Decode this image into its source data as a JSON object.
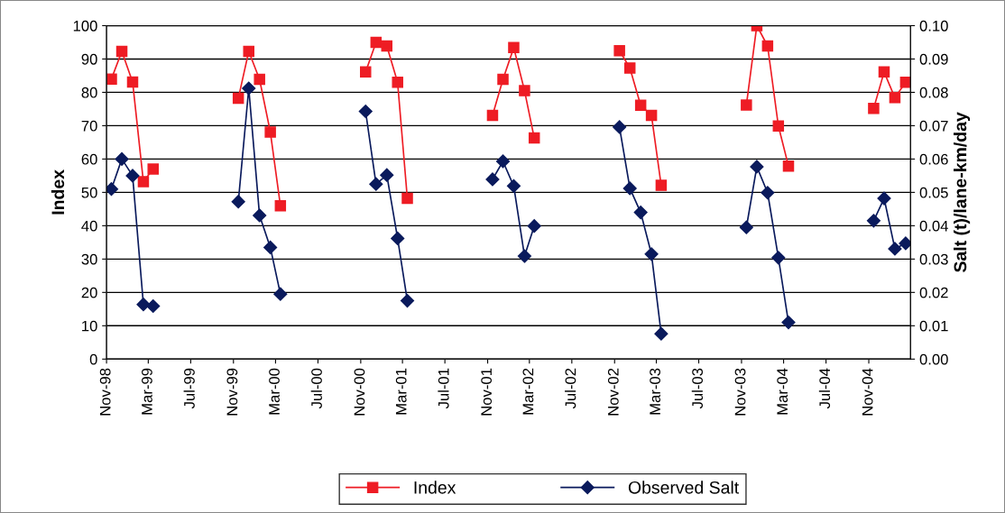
{
  "chart_data": {
    "type": "line",
    "ylabel": "Index",
    "y2label": "Salt (t)/lane-km/day",
    "x": [
      "1998-11-15",
      "1998-12-15",
      "1999-01-15",
      "1999-02-15",
      "1999-03-15",
      "1999-04-15",
      "1999-11-15",
      "1999-12-15",
      "2000-01-15",
      "2000-02-15",
      "2000-03-15",
      "2000-04-15",
      "2000-11-15",
      "2000-12-15",
      "2001-01-15",
      "2001-02-15",
      "2001-03-15",
      "2001-04-15",
      "2001-11-15",
      "2001-12-15",
      "2002-01-15",
      "2002-02-15",
      "2002-03-15",
      "2002-04-15",
      "2002-11-15",
      "2002-12-15",
      "2003-01-15",
      "2003-02-15",
      "2003-03-15",
      "2003-04-15",
      "2003-11-15",
      "2003-12-15",
      "2004-01-15",
      "2004-02-15",
      "2004-03-15",
      "2004-04-15",
      "2004-11-15",
      "2004-12-15",
      "2005-01-15",
      "2005-02-15"
    ],
    "series": [
      {
        "name": "Index",
        "color": "#ee1c24",
        "marker": "square",
        "values": [
          84,
          92.3,
          83.1,
          53.2,
          57,
          null,
          78.2,
          92.3,
          83.9,
          68.1,
          46,
          null,
          86.1,
          95,
          93.9,
          83,
          48.2,
          null,
          73.1,
          83.9,
          93.4,
          80.5,
          66.3,
          null,
          92.5,
          87.3,
          76.1,
          73.1,
          52.1,
          null,
          76.2,
          100,
          93.9,
          69.9,
          57.9,
          null,
          75.2,
          86.1,
          78.4,
          83
        ]
      },
      {
        "name": "Observed Salt",
        "color": "#0a1a5c",
        "marker": "diamond",
        "axis": "y2",
        "values": [
          0.051,
          0.06,
          0.055,
          0.0164,
          0.0159,
          null,
          0.0472,
          0.0812,
          0.0431,
          0.0335,
          0.0195,
          null,
          0.0743,
          0.0525,
          0.0552,
          0.0362,
          0.0175,
          null,
          0.0539,
          0.0593,
          0.0519,
          0.0309,
          0.0399,
          null,
          0.0696,
          0.0512,
          0.044,
          0.0315,
          0.0076,
          null,
          0.0395,
          0.0577,
          0.0499,
          0.0304,
          0.011,
          null,
          0.0415,
          0.0482,
          0.0331,
          0.0347
        ]
      }
    ],
    "xlim": [
      "1998-11-01",
      "2005-03-01"
    ],
    "xticks": [
      {
        "value": "1998-11-01",
        "label": "Nov-98"
      },
      {
        "value": "1999-03-01",
        "label": "Mar-99"
      },
      {
        "value": "1999-07-01",
        "label": "Jul-99"
      },
      {
        "value": "1999-11-01",
        "label": "Nov-99"
      },
      {
        "value": "2000-03-01",
        "label": "Mar-00"
      },
      {
        "value": "2000-07-01",
        "label": "Jul-00"
      },
      {
        "value": "2000-11-01",
        "label": "Nov-00"
      },
      {
        "value": "2001-03-01",
        "label": "Mar-01"
      },
      {
        "value": "2001-07-01",
        "label": "Jul-01"
      },
      {
        "value": "2001-11-01",
        "label": "Nov-01"
      },
      {
        "value": "2002-03-01",
        "label": "Mar-02"
      },
      {
        "value": "2002-07-01",
        "label": "Jul-02"
      },
      {
        "value": "2002-11-01",
        "label": "Nov-02"
      },
      {
        "value": "2003-03-01",
        "label": "Mar-03"
      },
      {
        "value": "2003-07-01",
        "label": "Jul-03"
      },
      {
        "value": "2003-11-01",
        "label": "Nov-03"
      },
      {
        "value": "2004-03-01",
        "label": "Mar-04"
      },
      {
        "value": "2004-07-01",
        "label": "Jul-04"
      },
      {
        "value": "2004-11-01",
        "label": "Nov-04"
      }
    ],
    "ylim": [
      0,
      100
    ],
    "yticks": [
      0,
      10,
      20,
      30,
      40,
      50,
      60,
      70,
      80,
      90,
      100
    ],
    "y2lim": [
      0,
      0.1
    ],
    "y2ticks": [
      {
        "value": 0,
        "label": "0.00"
      },
      {
        "value": 0.01,
        "label": "0.01"
      },
      {
        "value": 0.02,
        "label": "0.02"
      },
      {
        "value": 0.03,
        "label": "0.03"
      },
      {
        "value": 0.04,
        "label": "0.04"
      },
      {
        "value": 0.05,
        "label": "0.05"
      },
      {
        "value": 0.06,
        "label": "0.06"
      },
      {
        "value": 0.07,
        "label": "0.07"
      },
      {
        "value": 0.08,
        "label": "0.08"
      },
      {
        "value": 0.09,
        "label": "0.09"
      },
      {
        "value": 0.1,
        "label": "0.10"
      }
    ],
    "grid": "y",
    "legend": "bottom",
    "line_style": "solid"
  }
}
